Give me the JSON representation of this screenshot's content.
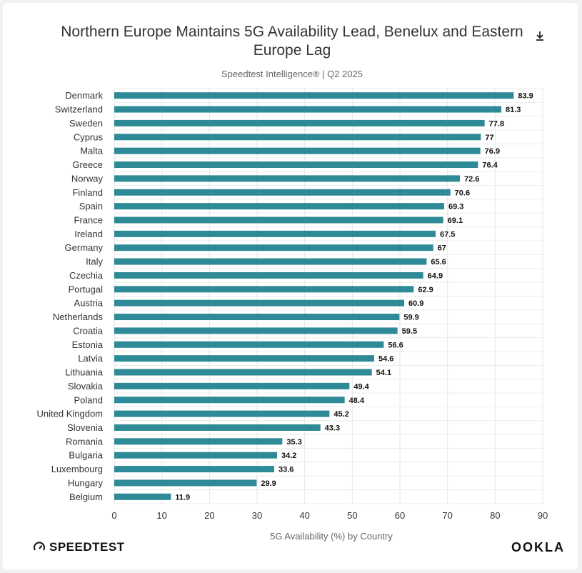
{
  "chart_data": {
    "type": "bar",
    "orientation": "horizontal",
    "title": "Northern Europe Maintains 5G Availability Lead, Benelux and Eastern Europe Lag",
    "subtitle": "Speedtest Intelligence® | Q2 2025",
    "xlabel": "5G Availability (%) by Country",
    "ylabel": "",
    "xlim": [
      0,
      90
    ],
    "ticks": [
      0,
      10,
      20,
      30,
      40,
      50,
      60,
      70,
      80,
      90
    ],
    "bar_color": "#2d8a96",
    "grid": true,
    "categories": [
      "Denmark",
      "Switzerland",
      "Sweden",
      "Cyprus",
      "Malta",
      "Greece",
      "Norway",
      "Finland",
      "Spain",
      "France",
      "Ireland",
      "Germany",
      "Italy",
      "Czechia",
      "Portugal",
      "Austria",
      "Netherlands",
      "Croatia",
      "Estonia",
      "Latvia",
      "Lithuania",
      "Slovakia",
      "Poland",
      "United Kingdom",
      "Slovenia",
      "Romania",
      "Bulgaria",
      "Luxembourg",
      "Hungary",
      "Belgium"
    ],
    "values": [
      83.9,
      81.3,
      77.8,
      77,
      76.9,
      76.4,
      72.6,
      70.6,
      69.3,
      69.1,
      67.5,
      67,
      65.6,
      64.9,
      62.9,
      60.9,
      59.9,
      59.5,
      56.6,
      54.6,
      54.1,
      49.4,
      48.4,
      45.2,
      43.3,
      35.3,
      34.2,
      33.6,
      29.9,
      11.9
    ]
  },
  "branding": {
    "left": "SPEEDTEST",
    "right": "OOKLA"
  },
  "icons": {
    "download": "download-icon",
    "speedtest_logo": "speedometer-icon"
  }
}
